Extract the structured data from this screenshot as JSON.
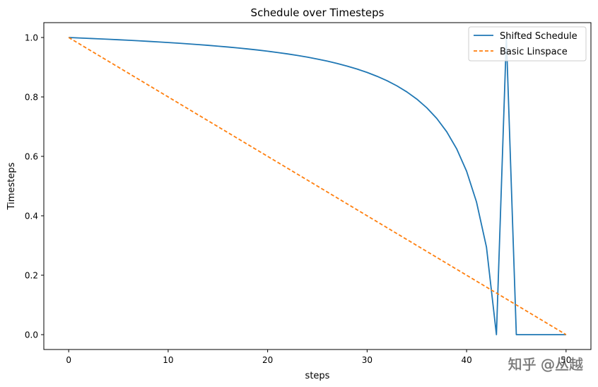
{
  "chart_data": {
    "type": "line",
    "title": "Schedule over Timesteps",
    "xlabel": "steps",
    "ylabel": "Timesteps",
    "xlim": [
      -2.5,
      52.5
    ],
    "ylim": [
      -0.05,
      1.05
    ],
    "xticks": [
      0,
      10,
      20,
      30,
      40,
      50
    ],
    "yticks": [
      0.0,
      0.2,
      0.4,
      0.6,
      0.8,
      1.0
    ],
    "xtick_labels": [
      "0",
      "10",
      "20",
      "30",
      "40",
      "50"
    ],
    "ytick_labels": [
      "0.0",
      "0.2",
      "0.4",
      "0.6",
      "0.8",
      "1.0"
    ],
    "grid": false,
    "legend_position": "top-right",
    "series": [
      {
        "name": "Shifted Schedule",
        "color": "#1f77b4",
        "style": "solid",
        "x": [
          0,
          1,
          2,
          3,
          4,
          5,
          6,
          7,
          8,
          9,
          10,
          11,
          12,
          13,
          14,
          15,
          16,
          17,
          18,
          19,
          20,
          21,
          22,
          23,
          24,
          25,
          26,
          27,
          28,
          29,
          30,
          31,
          32,
          33,
          34,
          35,
          36,
          37,
          38,
          39,
          40,
          41,
          42,
          43,
          44,
          45,
          46,
          47,
          48,
          49,
          50
        ],
        "y": [
          1.0,
          0.9986,
          0.9971,
          0.9956,
          0.994,
          0.9924,
          0.9907,
          0.9889,
          0.9871,
          0.9851,
          0.9831,
          0.9809,
          0.9786,
          0.9762,
          0.9737,
          0.9709,
          0.968,
          0.9649,
          0.9615,
          0.9579,
          0.9539,
          0.9495,
          0.9448,
          0.9396,
          0.9338,
          0.9275,
          0.9204,
          0.9125,
          0.9037,
          0.8938,
          0.8824,
          0.8694,
          0.8545,
          0.8372,
          0.8168,
          0.7926,
          0.7634,
          0.7277,
          0.6829,
          0.6255,
          0.55,
          0.4461,
          0.2941,
          0.0,
          1.0,
          0.0,
          0.0,
          0.0,
          0.0,
          0.0,
          0.0
        ]
      },
      {
        "name": "Basic Linspace",
        "color": "#ff7f0e",
        "style": "dashed",
        "x": [
          0,
          50
        ],
        "y": [
          1.0,
          0.0
        ]
      }
    ]
  },
  "watermark": "知乎 @丛越"
}
